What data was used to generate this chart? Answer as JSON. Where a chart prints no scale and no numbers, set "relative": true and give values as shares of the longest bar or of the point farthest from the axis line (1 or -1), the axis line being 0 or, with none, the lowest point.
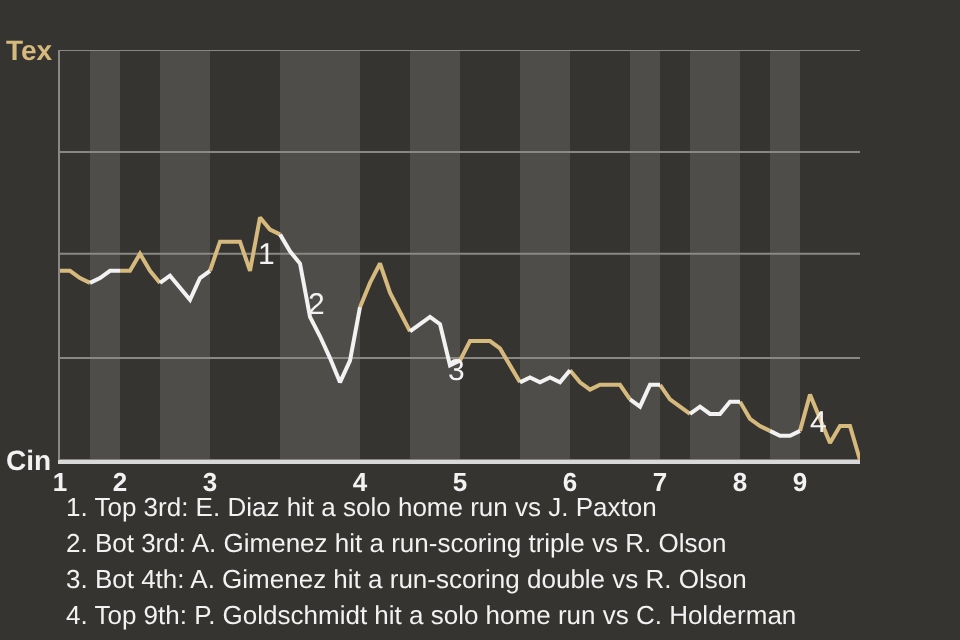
{
  "chart_data": {
    "type": "line",
    "relative": true,
    "categories": [
      "1",
      null,
      null,
      null,
      null,
      null,
      "2",
      null,
      null,
      null,
      null,
      null,
      null,
      null,
      null,
      "3",
      null,
      null,
      null,
      null,
      null,
      null,
      null,
      null,
      null,
      null,
      null,
      null,
      null,
      null,
      "4",
      null,
      null,
      null,
      null,
      null,
      null,
      null,
      null,
      null,
      "5",
      null,
      null,
      null,
      null,
      null,
      null,
      null,
      null,
      null,
      null,
      "6",
      null,
      null,
      null,
      null,
      null,
      null,
      null,
      null,
      "7",
      null,
      null,
      null,
      null,
      null,
      null,
      null,
      "8",
      null,
      null,
      null,
      null,
      null,
      "9",
      null,
      null,
      null,
      null,
      null,
      null
    ],
    "ref_lines": [
      {
        "axis": "y",
        "value": 1.69,
        "label": "Tex"
      },
      {
        "axis": "y",
        "value": 1.27,
        "label": null
      },
      {
        "axis": "y",
        "value": 0.85,
        "label": null
      },
      {
        "axis": "y",
        "value": 0.42,
        "label": null
      },
      {
        "axis": "y",
        "value": 0,
        "label": "Cin"
      }
    ],
    "marker": "none",
    "series": [
      {
        "color": "#d6b97c",
        "values": [
          0.78,
          0.78,
          0.75,
          0.73,
          null,
          null,
          0.78,
          0.78,
          0.85,
          0.78,
          0.73,
          null,
          null,
          null,
          null,
          0.78,
          0.9,
          0.9,
          0.9,
          0.78,
          1,
          0.95,
          0.93,
          null,
          null,
          null,
          null,
          null,
          null,
          null,
          0.63,
          0.73,
          0.81,
          0.69,
          0.61,
          0.53,
          null,
          null,
          null,
          null,
          0.41,
          0.49,
          0.49,
          0.49,
          0.46,
          0.39,
          0.32,
          null,
          null,
          null,
          null,
          0.37,
          0.32,
          0.29,
          0.31,
          0.31,
          0.31,
          0.25,
          null,
          null,
          0.31,
          0.25,
          0.22,
          0.19,
          null,
          null,
          null,
          null,
          0.24,
          0.17,
          0.14,
          0.12,
          null,
          null,
          0.12,
          0.27,
          0.17,
          0.07,
          0.14,
          0.14,
          0
        ]
      },
      {
        "color": "#f2f2f2",
        "values": [
          null,
          null,
          null,
          0.73,
          0.75,
          0.78,
          0.78,
          null,
          null,
          null,
          0.73,
          0.76,
          0.71,
          0.66,
          0.75,
          0.78,
          null,
          null,
          null,
          null,
          null,
          null,
          0.93,
          0.86,
          0.81,
          0.59,
          0.51,
          0.42,
          0.32,
          0.41,
          0.63,
          null,
          null,
          null,
          null,
          0.53,
          0.56,
          0.59,
          0.56,
          0.39,
          0.41,
          null,
          null,
          null,
          null,
          null,
          0.32,
          0.34,
          0.32,
          0.34,
          0.32,
          0.37,
          null,
          null,
          null,
          null,
          null,
          0.25,
          0.22,
          0.31,
          0.31,
          null,
          null,
          0.19,
          0.22,
          0.19,
          0.19,
          0.24,
          0.24,
          null,
          null,
          0.12,
          0.1,
          0.1,
          0.12,
          null,
          null,
          null,
          null,
          null,
          null
        ]
      }
    ],
    "annotations": [
      "1",
      "2",
      "3",
      "4",
      "1. Top 3rd: E. Diaz hit a solo home run vs J. Paxton",
      "2. Bot 3rd: A. Gimenez hit a run-scoring triple vs R. Olson",
      "3. Bot 4th: A. Gimenez hit a run-scoring double vs R. Olson",
      "4. Top 9th: P. Goldschmidt hit a solo home run vs C. Holderman"
    ]
  }
}
